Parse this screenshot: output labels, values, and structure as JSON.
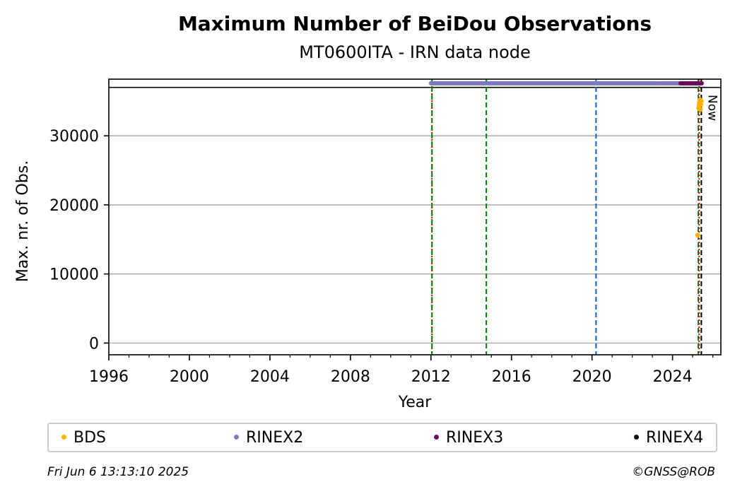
{
  "chart_data": {
    "type": "scatter",
    "title": "Maximum Number of BeiDou Observations",
    "subtitle": "MT0600ITA - IRN data node",
    "xlabel": "Year",
    "ylabel": "Max. nr. of Obs.",
    "xlim": [
      1996,
      2026.4
    ],
    "ylim": [
      -1700,
      38200
    ],
    "x_ticks": [
      1996,
      2000,
      2004,
      2008,
      2012,
      2016,
      2020,
      2024
    ],
    "y_ticks": [
      0,
      10000,
      20000,
      30000
    ],
    "grid": "y",
    "legend_placement": "bottom",
    "series": [
      {
        "name": "BDS",
        "color": "#ffb000",
        "points": [
          [
            2025.25,
            15600
          ],
          [
            2025.3,
            34000
          ],
          [
            2025.32,
            34400
          ],
          [
            2025.34,
            34800
          ],
          [
            2025.36,
            35200
          ],
          [
            2025.38,
            33800
          ],
          [
            2025.4,
            34500
          ],
          [
            2025.42,
            35000
          ]
        ]
      },
      {
        "name": "RINEX2",
        "color": "#7b7bbf",
        "segments": [
          [
            2012.0,
            2014.7
          ],
          [
            2014.8,
            2023.3
          ],
          [
            2023.35,
            2024.4
          ]
        ],
        "y": 37600
      },
      {
        "name": "RINEX3",
        "color": "#6a0a5a",
        "segments": [
          [
            2024.4,
            2025.45
          ]
        ],
        "y": 37600
      },
      {
        "name": "RINEX4",
        "color": "#1a0020",
        "segments": [],
        "y": 37600
      }
    ],
    "threshold_line": {
      "y": 37000,
      "color": "#000000"
    },
    "vertical_lines": [
      {
        "x": 2012.05,
        "color": "#cc0000",
        "style": "dotted"
      },
      {
        "x": 2012.05,
        "color": "#008000",
        "style": "dashed"
      },
      {
        "x": 2014.75,
        "color": "#008000",
        "style": "dashed"
      },
      {
        "x": 2020.2,
        "color": "#1060c0",
        "style": "dashed"
      },
      {
        "x": 2025.28,
        "color": "#008000",
        "style": "dashed"
      },
      {
        "x": 2025.32,
        "color": "#cc0000",
        "style": "dotted"
      },
      {
        "x": 2025.43,
        "color": "#000000",
        "style": "dashed",
        "label": "Now"
      }
    ]
  },
  "legend": [
    "BDS",
    "RINEX2",
    "RINEX3",
    "RINEX4"
  ],
  "footer": {
    "left": "Fri Jun  6 13:13:10 2025",
    "right": "©GNSS@ROB"
  }
}
